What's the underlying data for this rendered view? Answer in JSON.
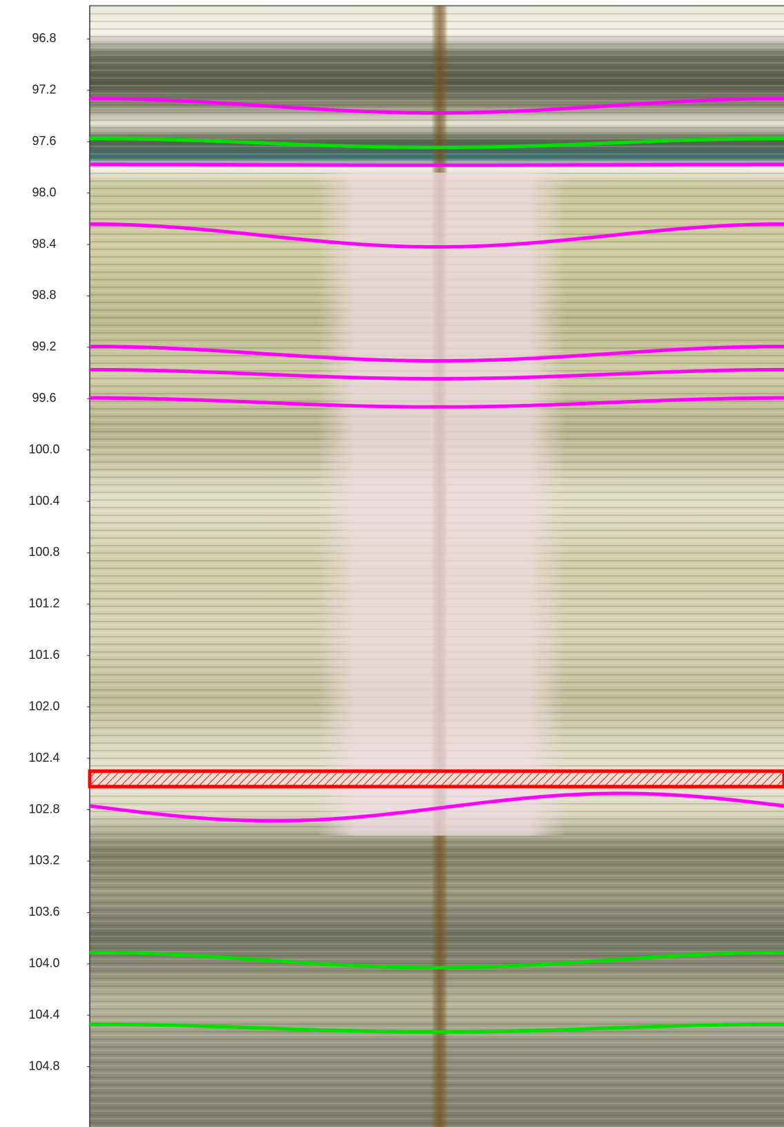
{
  "chart_data": {
    "type": "image-log",
    "ylim": [
      96.54,
      105.27
    ],
    "yticks": [
      96.8,
      97.2,
      97.6,
      {
        "value": 98,
        "label": "98.0"
      },
      98.4,
      98.8,
      99.2,
      99.6,
      {
        "value": 100,
        "label": "100.0"
      },
      100.4,
      100.8,
      101.2,
      101.6,
      {
        "value": 102,
        "label": "102.0"
      },
      102.4,
      102.8,
      103.2,
      103.6,
      {
        "value": 104,
        "label": "104.0"
      },
      104.4,
      104.8
    ],
    "sinusoids": [
      {
        "depth": 97.32,
        "amplitude": 0.056,
        "azimuth": 180,
        "color": "#ff00ff"
      },
      {
        "depth": 97.61,
        "amplitude": 0.035,
        "azimuth": 180,
        "color": "#00e000"
      },
      {
        "depth": 97.78,
        "amplitude": 0.003,
        "azimuth": 180,
        "color": "#ff00ff"
      },
      {
        "depth": 98.33,
        "amplitude": 0.089,
        "azimuth": 180,
        "color": "#ff00ff"
      },
      {
        "depth": 99.25,
        "amplitude": 0.056,
        "azimuth": 180,
        "color": "#ff00ff"
      },
      {
        "depth": 99.41,
        "amplitude": 0.035,
        "azimuth": 180,
        "color": "#ff00ff"
      },
      {
        "depth": 99.63,
        "amplitude": 0.035,
        "azimuth": 180,
        "color": "#ff00ff"
      },
      {
        "depth": 102.78,
        "amplitude": 0.107,
        "azimuth": 95,
        "color": "#ff00ff"
      },
      {
        "depth": 103.97,
        "amplitude": 0.059,
        "azimuth": 180,
        "color": "#00e000"
      },
      {
        "depth": 104.5,
        "amplitude": 0.03,
        "azimuth": 180,
        "color": "#00e000"
      }
    ],
    "beds": [
      {
        "top": 102.5,
        "bottom": 102.62,
        "color": "#ff0000"
      }
    ]
  }
}
